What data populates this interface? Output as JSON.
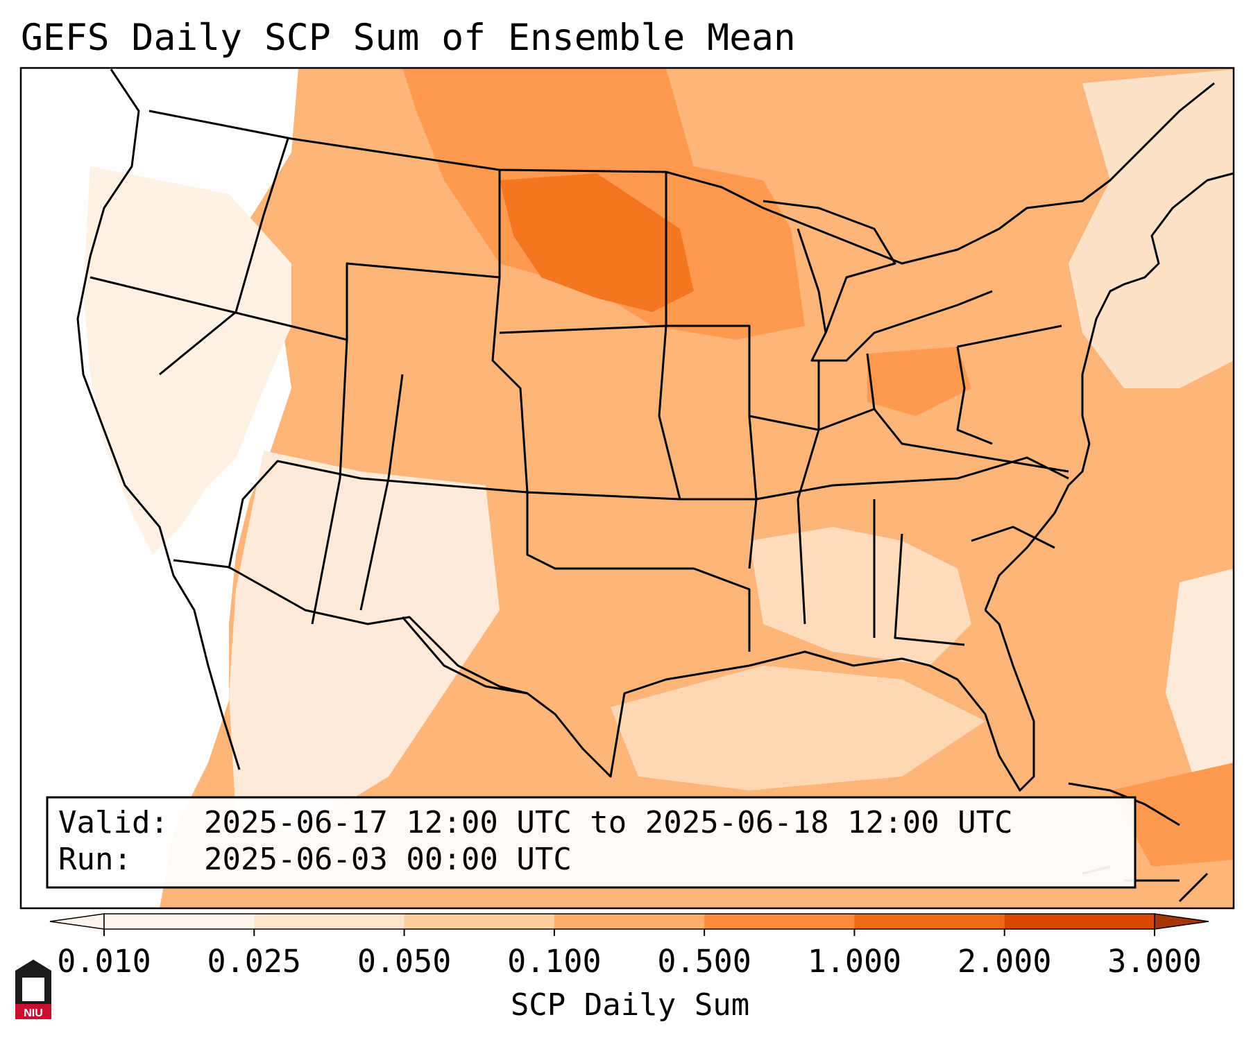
{
  "title": "GEFS Daily SCP Sum of Ensemble Mean",
  "info": {
    "valid_label": "Valid:",
    "valid_value": "2025-06-17 12:00 UTC to 2025-06-18 12:00 UTC",
    "run_label": "Run:",
    "run_value": "2025-06-03 00:00 UTC"
  },
  "colorbar": {
    "label": "SCP Daily Sum",
    "ticks": [
      "0.010",
      "0.025",
      "0.050",
      "0.100",
      "0.500",
      "1.000",
      "2.000",
      "3.000"
    ],
    "colors": [
      "#fff5eb",
      "#fee6ce",
      "#fdd0a2",
      "#fdae6b",
      "#fd8d3c",
      "#f16913",
      "#d94801",
      "#a63603"
    ],
    "extend": "both"
  },
  "logo": {
    "text": "NIU"
  }
}
